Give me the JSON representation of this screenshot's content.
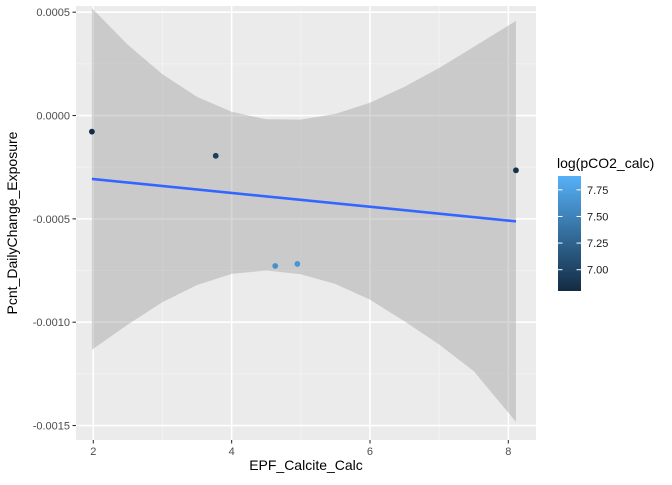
{
  "chart_data": {
    "type": "scatter",
    "title": "",
    "xlabel": "EPF_Calcite_Calc",
    "ylabel": "Pcnt_DailyChange_Exposure",
    "xlim": [
      1.75,
      8.4
    ],
    "ylim": [
      -0.00157,
      0.00053
    ],
    "grid": true,
    "x_ticks": [
      2,
      4,
      6,
      8
    ],
    "x_tick_labels": [
      "2",
      "4",
      "6",
      "8"
    ],
    "y_ticks": [
      0.0005,
      0.0,
      -0.0005,
      -0.001,
      -0.0015
    ],
    "y_tick_labels": [
      "0.0005",
      "0.0000",
      "-0.0005",
      "-0.0010",
      "-0.0015"
    ],
    "points": [
      {
        "x": 1.98,
        "y": -7.8e-05,
        "color_value": 6.82
      },
      {
        "x": 3.77,
        "y": -0.000195,
        "color_value": 6.96
      },
      {
        "x": 4.63,
        "y": -0.000728,
        "color_value": 7.62
      },
      {
        "x": 4.95,
        "y": -0.000718,
        "color_value": 7.66
      },
      {
        "x": 8.11,
        "y": -0.000265,
        "color_value": 6.85
      }
    ],
    "trend_line": {
      "method": "lm",
      "color": "#3366ff",
      "points": [
        {
          "x": 1.98,
          "y": -0.000307
        },
        {
          "x": 8.11,
          "y": -0.000512
        }
      ]
    },
    "confidence_band": {
      "color": "#999999",
      "x": [
        1.98,
        2.5,
        3.0,
        3.5,
        4.0,
        4.5,
        5.0,
        5.5,
        6.0,
        6.5,
        7.0,
        7.5,
        8.11
      ],
      "upper": [
        0.00052,
        0.000342,
        0.0002,
        9e-05,
        1.8e-05,
        -1.8e-05,
        -2e-05,
        8e-06,
        6.2e-05,
        0.000139,
        0.00023,
        0.000332,
        0.000458
      ],
      "lower": [
        -0.001133,
        -0.001011,
        -0.000903,
        -0.00082,
        -0.000766,
        -0.00075,
        -0.000768,
        -0.000815,
        -0.000891,
        -0.000996,
        -0.001108,
        -0.001237,
        -0.001482
      ]
    },
    "legend": {
      "title": "log(pCO2_calc)",
      "placement": "right",
      "range": [
        6.8,
        7.88
      ],
      "breaks": [
        7.75,
        7.5,
        7.25,
        7.0
      ],
      "break_labels": [
        "7.75",
        "7.50",
        "7.25",
        "7.00"
      ],
      "low_color": "#132b43",
      "high_color": "#56b1f7"
    }
  }
}
